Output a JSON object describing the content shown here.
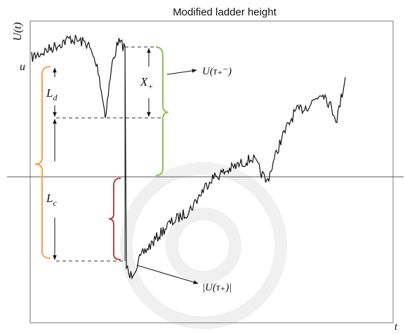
{
  "title": "Modified ladder height",
  "axis": {
    "y_label": "U(t)",
    "x_label": "t",
    "level": "u"
  },
  "labels": {
    "ld": {
      "main": "L",
      "sub": "d"
    },
    "lc": {
      "main": "L",
      "sub": "c"
    },
    "xplus": {
      "main": "X",
      "sub": "+"
    },
    "pre_jump": "U(τ₊⁻)",
    "post_jump": "|U(τ₊)|"
  }
}
